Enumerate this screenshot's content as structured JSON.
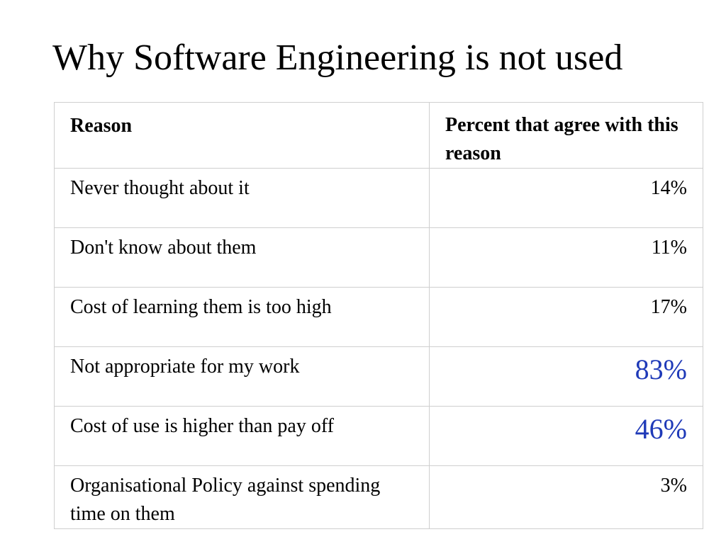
{
  "title": "Why Software Engineering is not used",
  "table": {
    "headers": {
      "reason": "Reason",
      "percent": "Percent that agree with this reason"
    },
    "rows": [
      {
        "reason": "Never thought about it",
        "percent": "14%",
        "highlight": false
      },
      {
        "reason": "Don't know about them",
        "percent": "11%",
        "highlight": false
      },
      {
        "reason": "Cost of learning them is too high",
        "percent": "17%",
        "highlight": false
      },
      {
        "reason": "Not appropriate for my work",
        "percent": "83%",
        "highlight": true
      },
      {
        "reason": "Cost of use is higher than pay off",
        "percent": "46%",
        "highlight": true
      },
      {
        "reason": "Organisational Policy against spending time on them",
        "percent": "3%",
        "highlight": false
      }
    ]
  },
  "colors": {
    "text": "#000000",
    "highlight": "#1f3ab8",
    "grid": "#cfcfcf"
  }
}
